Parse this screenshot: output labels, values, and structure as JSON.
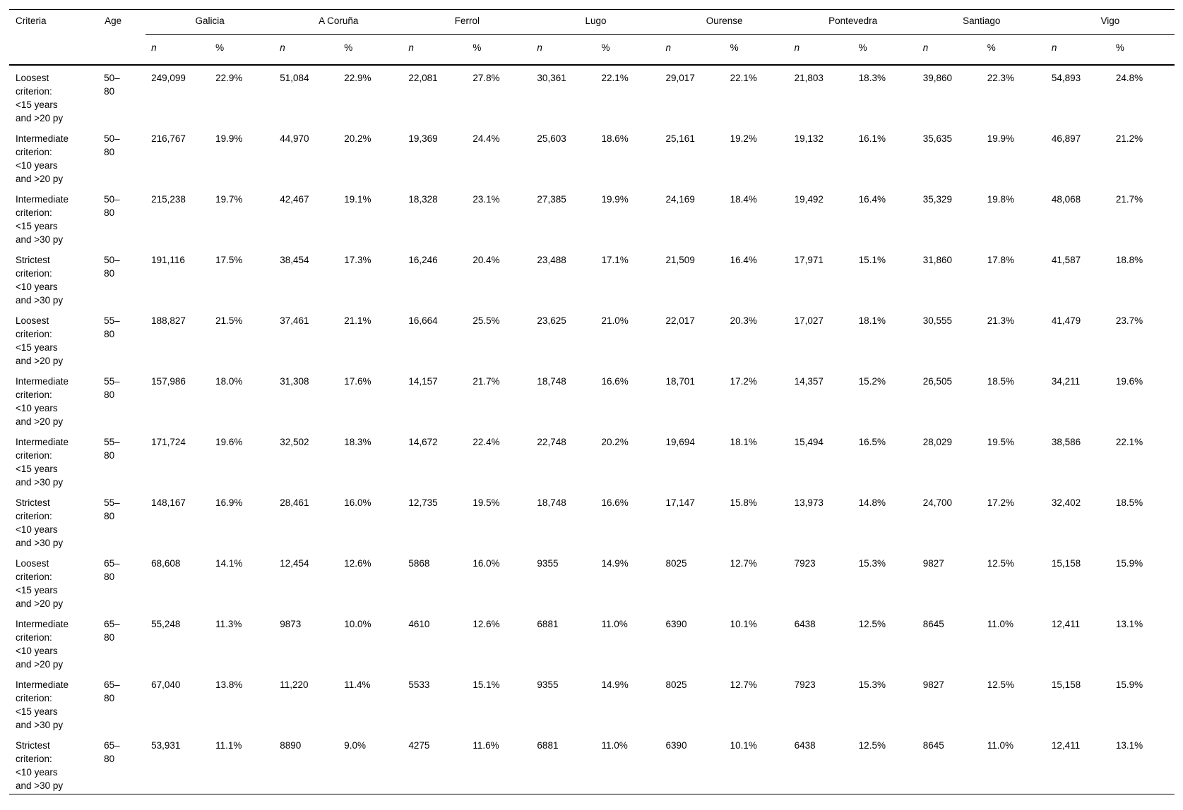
{
  "page": {
    "background_color": "#ffffff",
    "text_color": "#000000"
  },
  "table": {
    "header": {
      "criteria_label": "Criteria",
      "age_label": "Age",
      "regions": [
        "Galicia",
        "A Coruña",
        "Ferrol",
        "Lugo",
        "Ourense",
        "Pontevedra",
        "Santiago",
        "Vigo"
      ],
      "subcolumns": {
        "n_label": "n",
        "pct_label": "%"
      }
    },
    "rows": [
      {
        "criteria": "Loosest\ncriterion:\n<15 years\nand >20 py",
        "age": "50–\n80",
        "values": [
          "249,099",
          "22.9%",
          "51,084",
          "22.9%",
          "22,081",
          "27.8%",
          "30,361",
          "22.1%",
          "29,017",
          "22.1%",
          "21,803",
          "18.3%",
          "39,860",
          "22.3%",
          "54,893",
          "24.8%"
        ]
      },
      {
        "criteria": "Intermediate\ncriterion:\n<10 years\nand >20 py",
        "age": "50–\n80",
        "values": [
          "216,767",
          "19.9%",
          "44,970",
          "20.2%",
          "19,369",
          "24.4%",
          "25,603",
          "18.6%",
          "25,161",
          "19.2%",
          "19,132",
          "16.1%",
          "35,635",
          "19.9%",
          "46,897",
          "21.2%"
        ]
      },
      {
        "criteria": "Intermediate\ncriterion:\n<15 years\nand >30 py",
        "age": "50–\n80",
        "values": [
          "215,238",
          "19.7%",
          "42,467",
          "19.1%",
          "18,328",
          "23.1%",
          "27,385",
          "19.9%",
          "24,169",
          "18.4%",
          "19,492",
          "16.4%",
          "35,329",
          "19.8%",
          "48,068",
          "21.7%"
        ]
      },
      {
        "criteria": "Strictest\ncriterion:\n<10 years\nand >30 py",
        "age": "50–\n80",
        "values": [
          "191,116",
          "17.5%",
          "38,454",
          "17.3%",
          "16,246",
          "20.4%",
          "23,488",
          "17.1%",
          "21,509",
          "16.4%",
          "17,971",
          "15.1%",
          "31,860",
          "17.8%",
          "41,587",
          "18.8%"
        ]
      },
      {
        "criteria": "Loosest\ncriterion:\n<15 years\nand >20 py",
        "age": "55–\n80",
        "values": [
          "188,827",
          "21.5%",
          "37,461",
          "21.1%",
          "16,664",
          "25.5%",
          "23,625",
          "21.0%",
          "22,017",
          "20.3%",
          "17,027",
          "18.1%",
          "30,555",
          "21.3%",
          "41,479",
          "23.7%"
        ]
      },
      {
        "criteria": "Intermediate\ncriterion:\n<10 years\nand >20 py",
        "age": "55–\n80",
        "values": [
          "157,986",
          "18.0%",
          "31,308",
          "17.6%",
          "14,157",
          "21.7%",
          "18,748",
          "16.6%",
          "18,701",
          "17.2%",
          "14,357",
          "15.2%",
          "26,505",
          "18.5%",
          "34,211",
          "19.6%"
        ]
      },
      {
        "criteria": "Intermediate\ncriterion:\n<15 years\nand >30 py",
        "age": "55–\n80",
        "values": [
          "171,724",
          "19.6%",
          "32,502",
          "18.3%",
          "14,672",
          "22.4%",
          "22,748",
          "20.2%",
          "19,694",
          "18.1%",
          "15,494",
          "16.5%",
          "28,029",
          "19.5%",
          "38,586",
          "22.1%"
        ]
      },
      {
        "criteria": "Strictest\ncriterion:\n<10 years\nand >30 py",
        "age": "55–\n80",
        "values": [
          "148,167",
          "16.9%",
          "28,461",
          "16.0%",
          "12,735",
          "19.5%",
          "18,748",
          "16.6%",
          "17,147",
          "15.8%",
          "13,973",
          "14.8%",
          "24,700",
          "17.2%",
          "32,402",
          "18.5%"
        ]
      },
      {
        "criteria": "Loosest\ncriterion:\n<15 years\nand >20 py",
        "age": "65–\n80",
        "values": [
          "68,608",
          "14.1%",
          "12,454",
          "12.6%",
          "5868",
          "16.0%",
          "9355",
          "14.9%",
          "8025",
          "12.7%",
          "7923",
          "15.3%",
          "9827",
          "12.5%",
          "15,158",
          "15.9%"
        ]
      },
      {
        "criteria": "Intermediate\ncriterion:\n<10 years\nand >20 py",
        "age": "65–\n80",
        "values": [
          "55,248",
          "11.3%",
          "9873",
          "10.0%",
          "4610",
          "12.6%",
          "6881",
          "11.0%",
          "6390",
          "10.1%",
          "6438",
          "12.5%",
          "8645",
          "11.0%",
          "12,411",
          "13.1%"
        ]
      },
      {
        "criteria": "Intermediate\ncriterion:\n<15 years\nand >30 py",
        "age": "65–\n80",
        "values": [
          "67,040",
          "13.8%",
          "11,220",
          "11.4%",
          "5533",
          "15.1%",
          "9355",
          "14.9%",
          "8025",
          "12.7%",
          "7923",
          "15.3%",
          "9827",
          "12.5%",
          "15,158",
          "15.9%"
        ]
      },
      {
        "criteria": "Strictest\ncriterion:\n<10 years\nand >30 py",
        "age": "65–\n80",
        "values": [
          "53,931",
          "11.1%",
          "8890",
          "9.0%",
          "4275",
          "11.6%",
          "6881",
          "11.0%",
          "6390",
          "10.1%",
          "6438",
          "12.5%",
          "8645",
          "11.0%",
          "12,411",
          "13.1%"
        ]
      }
    ]
  }
}
